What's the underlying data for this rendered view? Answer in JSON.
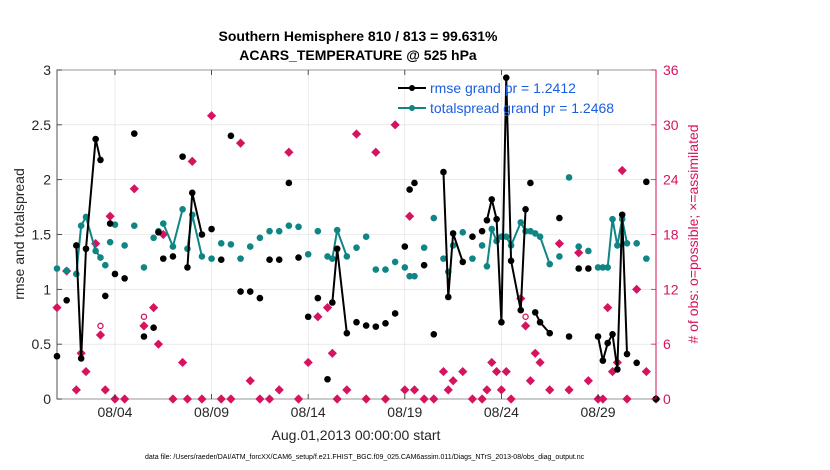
{
  "colors": {
    "rmse": "#000000",
    "spread": "#0f8585",
    "obs": "#d6135f",
    "legend_text": "#1a5ee0"
  },
  "chart_data": {
    "type": "line",
    "title": "Southern Hemisphere 810 / 813 = 99.631%",
    "subtitle": "ACARS_TEMPERATURE @ 525 hPa",
    "xlabel": "Aug.01,2013 00:00:00 start",
    "ylabel": "rmse and totalspread",
    "ylabel_right": "# of obs: o=possible; ×=assimilated",
    "footnote": "data file: /Users/raeder/DAI/ATM_forcXX/CAM6_setup/f.e21.FHIST_BGC.f09_025.CAM6assim.011/Diags_NTrS_2013-08/obs_diag_output.nc",
    "xlim": [
      1,
      32
    ],
    "ylim": [
      0,
      3
    ],
    "ylim_right": [
      0,
      36
    ],
    "x_ticks": [
      4,
      9,
      14,
      19,
      24,
      29
    ],
    "x_tick_labels": [
      "08/04",
      "08/09",
      "08/14",
      "08/19",
      "08/24",
      "08/29"
    ],
    "y_ticks": [
      0,
      0.5,
      1,
      1.5,
      2,
      2.5,
      3
    ],
    "y_tick_labels": [
      "0",
      "0.5",
      "1",
      "1.5",
      "2",
      "2.5",
      "3"
    ],
    "y_ticks_right": [
      0,
      6,
      12,
      18,
      24,
      30,
      36
    ],
    "y_tick_labels_right": [
      "0",
      "6",
      "12",
      "18",
      "24",
      "30",
      "36"
    ],
    "legend": {
      "placement": "top-right",
      "entries": [
        "rmse grand pr = 1.2412",
        "totalspread grand pr = 1.2468"
      ]
    },
    "grid": true,
    "series": [
      {
        "name": "rmse grand pr = 1.2412",
        "x": [
          1.0,
          1.5,
          2.0,
          2.25,
          2.5,
          3.0,
          3.25,
          3.5,
          3.75,
          4.0,
          4.5,
          5.0,
          5.5,
          6.0,
          6.25,
          6.5,
          7.0,
          7.5,
          7.75,
          8.0,
          8.5,
          9.0,
          9.5,
          10.0,
          10.5,
          11.0,
          11.5,
          12.0,
          12.5,
          13.0,
          13.5,
          14.0,
          14.5,
          15.0,
          15.25,
          15.5,
          16.0,
          16.5,
          17.0,
          17.5,
          18.0,
          18.5,
          19.0,
          19.25,
          19.5,
          20.0,
          20.5,
          21.0,
          21.25,
          21.5,
          22.0,
          22.5,
          23.0,
          23.25,
          23.5,
          23.75,
          24.0,
          24.25,
          24.5,
          25.0,
          25.25,
          25.5,
          25.75,
          26.0,
          26.5,
          27.0,
          27.5,
          28.0,
          28.5,
          29.0,
          29.25,
          29.5,
          29.75,
          30.0,
          30.25,
          30.5,
          31.0,
          31.5,
          32.0
        ],
        "values": [
          0.39,
          0.9,
          1.4,
          0.37,
          1.37,
          2.37,
          2.18,
          0.94,
          1.6,
          1.14,
          1.1,
          2.42,
          0.57,
          0.65,
          1.52,
          1.28,
          1.3,
          2.21,
          1.2,
          1.88,
          1.5,
          1.55,
          1.27,
          2.4,
          0.98,
          0.98,
          0.92,
          1.27,
          1.27,
          1.97,
          1.29,
          0.75,
          0.92,
          0.18,
          0.88,
          1.37,
          0.6,
          0.7,
          0.67,
          0.66,
          0.69,
          0.78,
          1.39,
          1.91,
          1.97,
          1.22,
          0.59,
          2.07,
          0.93,
          1.51,
          1.25,
          1.48,
          1.53,
          1.63,
          1.82,
          1.64,
          0.7,
          2.93,
          1.26,
          0.81,
          1.73,
          1.97,
          0.79,
          0.7,
          0.6,
          1.65,
          0.57,
          1.19,
          1.19,
          0.57,
          0.35,
          0.51,
          0.59,
          0.27,
          1.68,
          0.41,
          0.33,
          1.98,
          0.0
        ],
        "segments": [
          [
            2,
            6
          ],
          [
            18,
            20
          ],
          [
            34,
            36
          ],
          [
            47,
            50
          ],
          [
            53,
            60
          ],
          [
            62,
            64
          ],
          [
            69,
            75
          ]
        ]
      },
      {
        "name": "totalspread grand pr = 1.2468",
        "x": [
          1.0,
          1.5,
          2.0,
          2.25,
          2.5,
          3.0,
          3.25,
          3.5,
          3.75,
          4.0,
          4.5,
          5.0,
          5.5,
          6.0,
          6.25,
          6.5,
          7.0,
          7.5,
          7.75,
          8.0,
          8.5,
          9.0,
          9.5,
          10.0,
          10.5,
          11.0,
          11.5,
          12.0,
          12.5,
          13.0,
          13.5,
          14.0,
          14.5,
          15.0,
          15.25,
          15.5,
          16.0,
          16.5,
          17.0,
          17.5,
          18.0,
          18.5,
          19.0,
          19.25,
          19.5,
          20.0,
          20.5,
          21.0,
          21.25,
          21.5,
          22.0,
          22.5,
          23.0,
          23.25,
          23.5,
          23.75,
          24.0,
          24.25,
          24.5,
          25.0,
          25.25,
          25.5,
          25.75,
          26.0,
          26.5,
          27.0,
          27.5,
          28.0,
          28.5,
          29.0,
          29.25,
          29.5,
          29.75,
          30.0,
          30.25,
          30.5,
          31.0,
          31.5,
          32.0
        ],
        "values": [
          1.19,
          1.17,
          1.14,
          1.58,
          1.66,
          1.35,
          1.29,
          1.22,
          1.43,
          1.59,
          1.4,
          1.58,
          1.2,
          1.47,
          1.53,
          1.6,
          1.39,
          1.73,
          1.37,
          1.68,
          1.3,
          1.28,
          1.42,
          1.41,
          1.28,
          1.39,
          1.47,
          1.53,
          1.53,
          1.58,
          1.57,
          1.32,
          1.53,
          1.3,
          1.28,
          1.54,
          1.3,
          1.38,
          1.48,
          1.18,
          1.18,
          1.25,
          1.2,
          1.12,
          1.12,
          1.38,
          1.65,
          1.28,
          1.16,
          1.4,
          1.52,
          1.28,
          1.4,
          1.21,
          1.55,
          1.44,
          1.48,
          1.48,
          1.4,
          1.61,
          1.53,
          1.53,
          1.51,
          1.48,
          1.23,
          1.3,
          2.02,
          1.39,
          1.35,
          1.2,
          1.2,
          1.2,
          1.64,
          1.4,
          1.64,
          1.42,
          1.42,
          1.28,
          0.0
        ],
        "segments": [
          [
            2,
            6
          ],
          [
            15,
            17
          ],
          [
            18,
            20
          ],
          [
            34,
            36
          ],
          [
            53,
            60
          ],
          [
            62,
            64
          ],
          [
            69,
            75
          ]
        ]
      }
    ],
    "obs_possible": {
      "x": [
        1.0,
        1.5,
        2.0,
        2.25,
        2.5,
        3.0,
        3.25,
        3.5,
        3.75,
        4.0,
        4.5,
        5.0,
        5.5,
        6.0,
        6.25,
        6.5,
        7.0,
        7.5,
        7.75,
        8.0,
        8.5,
        9.0,
        9.5,
        10.0,
        10.5,
        11.0,
        11.5,
        12.0,
        12.5,
        13.0,
        13.5,
        14.0,
        14.5,
        15.0,
        15.25,
        15.5,
        16.0,
        16.5,
        17.0,
        17.5,
        18.0,
        18.5,
        19.0,
        19.25,
        19.5,
        20.0,
        20.5,
        21.0,
        21.25,
        21.5,
        22.0,
        22.5,
        23.0,
        23.25,
        23.5,
        23.75,
        24.0,
        24.25,
        24.5,
        25.0,
        25.25,
        25.5,
        25.75,
        26.0,
        26.5,
        27.0,
        27.5,
        28.0,
        28.5,
        29.0,
        29.25,
        29.5,
        29.75,
        30.0,
        30.25,
        30.5,
        31.0,
        31.5,
        32.0
      ],
      "values": [
        10,
        14,
        1,
        5,
        3,
        17,
        8,
        1,
        20,
        0,
        0,
        23,
        9,
        10,
        6,
        18,
        0,
        4,
        0,
        26,
        0,
        31,
        0,
        0,
        28,
        2,
        0,
        0,
        1,
        27,
        0,
        4,
        9,
        10,
        5,
        0,
        1,
        29,
        0,
        27,
        0,
        30,
        1,
        20,
        1,
        0,
        0,
        3,
        1,
        2,
        3,
        0,
        0,
        1,
        4,
        3,
        1,
        3,
        0,
        11,
        9,
        2,
        5,
        4,
        1,
        17,
        1,
        16,
        2,
        0,
        0,
        10,
        3,
        4,
        25,
        0,
        12,
        3,
        0
      ]
    },
    "obs_assimilated": {
      "x": [
        1.0,
        1.5,
        2.0,
        2.25,
        2.5,
        3.0,
        3.25,
        3.5,
        3.75,
        4.0,
        4.5,
        5.0,
        5.5,
        6.0,
        6.25,
        6.5,
        7.0,
        7.5,
        7.75,
        8.0,
        8.5,
        9.0,
        9.5,
        10.0,
        10.5,
        11.0,
        11.5,
        12.0,
        12.5,
        13.0,
        13.5,
        14.0,
        14.5,
        15.0,
        15.25,
        15.5,
        16.0,
        16.5,
        17.0,
        17.5,
        18.0,
        18.5,
        19.0,
        19.25,
        19.5,
        20.0,
        20.5,
        21.0,
        21.25,
        21.5,
        22.0,
        22.5,
        23.0,
        23.25,
        23.5,
        23.75,
        24.0,
        24.25,
        24.5,
        25.0,
        25.25,
        25.5,
        25.75,
        26.0,
        26.5,
        27.0,
        27.5,
        28.0,
        28.5,
        29.0,
        29.25,
        29.5,
        29.75,
        30.0,
        30.25,
        30.5,
        31.0,
        31.5,
        32.0
      ],
      "values": [
        10,
        14,
        1,
        5,
        3,
        17,
        7,
        1,
        20,
        0,
        0,
        23,
        8,
        10,
        6,
        18,
        0,
        4,
        0,
        26,
        0,
        31,
        0,
        0,
        28,
        2,
        0,
        0,
        1,
        27,
        0,
        4,
        9,
        10,
        5,
        0,
        1,
        29,
        0,
        27,
        0,
        30,
        1,
        20,
        1,
        0,
        0,
        3,
        1,
        2,
        3,
        0,
        0,
        1,
        4,
        3,
        1,
        3,
        0,
        11,
        8,
        2,
        5,
        4,
        1,
        17,
        1,
        16,
        2,
        0,
        0,
        10,
        3,
        4,
        25,
        0,
        12,
        3,
        0
      ]
    }
  }
}
